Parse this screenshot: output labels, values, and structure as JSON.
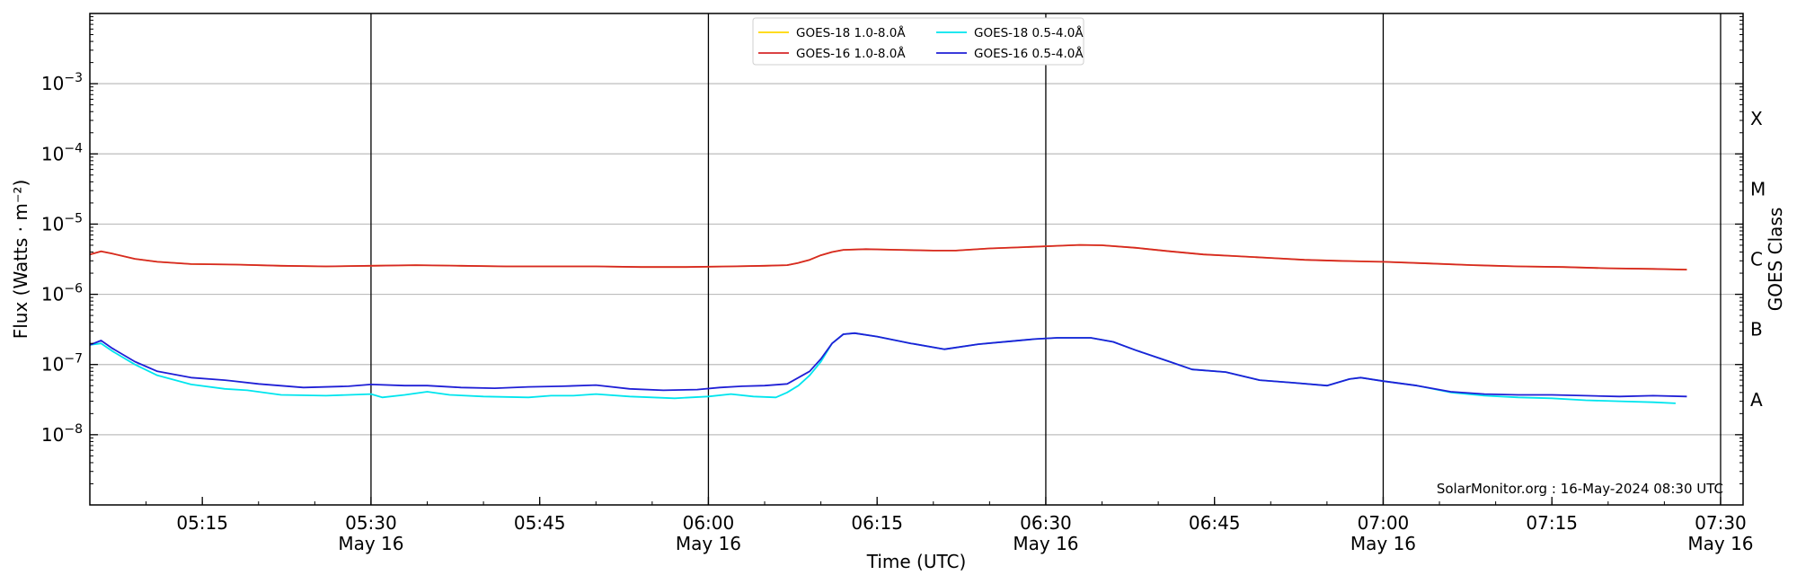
{
  "chart_data": {
    "type": "line",
    "title": "",
    "xlabel": "Time (UTC)",
    "ylabel": "Flux (Watts · m⁻²)",
    "y2label": "GOES Class",
    "yscale": "log",
    "ylim": [
      1e-09,
      0.01
    ],
    "xlim": [
      "05:05",
      "07:32"
    ],
    "xticks": [
      {
        "time": "05:15",
        "label": "05:15",
        "date": ""
      },
      {
        "time": "05:30",
        "label": "05:30",
        "date": "May 16"
      },
      {
        "time": "05:45",
        "label": "05:45",
        "date": ""
      },
      {
        "time": "06:00",
        "label": "06:00",
        "date": "May 16"
      },
      {
        "time": "06:15",
        "label": "06:15",
        "date": ""
      },
      {
        "time": "06:30",
        "label": "06:30",
        "date": "May 16"
      },
      {
        "time": "06:45",
        "label": "06:45",
        "date": ""
      },
      {
        "time": "07:00",
        "label": "07:00",
        "date": "May 16"
      },
      {
        "time": "07:15",
        "label": "07:15",
        "date": ""
      },
      {
        "time": "07:30",
        "label": "07:30",
        "date": "May 16"
      }
    ],
    "day_markers": [
      "05:30",
      "06:00",
      "06:30",
      "07:00",
      "07:30"
    ],
    "yticks": [
      {
        "value": 1e-08,
        "base": "10",
        "exp": "−8"
      },
      {
        "value": 1e-07,
        "base": "10",
        "exp": "−7"
      },
      {
        "value": 1e-06,
        "base": "10",
        "exp": "−6"
      },
      {
        "value": 1e-05,
        "base": "10",
        "exp": "−5"
      },
      {
        "value": 0.0001,
        "base": "10",
        "exp": "−4"
      },
      {
        "value": 0.001,
        "base": "10",
        "exp": "−3"
      }
    ],
    "goes_classes": [
      {
        "label": "A",
        "value": 3.16e-08
      },
      {
        "label": "B",
        "value": 3.16e-07
      },
      {
        "label": "C",
        "value": 3.16e-06
      },
      {
        "label": "M",
        "value": 3.16e-05
      },
      {
        "label": "X",
        "value": 0.000316
      }
    ],
    "grid": true,
    "legend": {
      "position": "top-center",
      "columns": 2
    },
    "series": [
      {
        "name": "GOES-18 1.0-8.0Å",
        "color": "#ffd700",
        "points": [
          [
            "05:05",
            3.7e-06
          ],
          [
            "05:06",
            4.1e-06
          ],
          [
            "05:07",
            3.8e-06
          ],
          [
            "05:09",
            3.2e-06
          ],
          [
            "05:11",
            2.9e-06
          ],
          [
            "05:14",
            2.7e-06
          ],
          [
            "05:18",
            2.65e-06
          ],
          [
            "05:22",
            2.55e-06
          ],
          [
            "05:26",
            2.5e-06
          ],
          [
            "05:30",
            2.55e-06
          ],
          [
            "05:34",
            2.6e-06
          ],
          [
            "05:38",
            2.55e-06
          ],
          [
            "05:42",
            2.5e-06
          ],
          [
            "05:46",
            2.5e-06
          ],
          [
            "05:50",
            2.5e-06
          ],
          [
            "05:54",
            2.45e-06
          ],
          [
            "05:58",
            2.45e-06
          ],
          [
            "06:02",
            2.5e-06
          ],
          [
            "06:05",
            2.55e-06
          ],
          [
            "06:07",
            2.6e-06
          ],
          [
            "06:08",
            2.8e-06
          ],
          [
            "06:09",
            3.1e-06
          ],
          [
            "06:10",
            3.6e-06
          ],
          [
            "06:11",
            4e-06
          ],
          [
            "06:12",
            4.3e-06
          ],
          [
            "06:14",
            4.4e-06
          ],
          [
            "06:17",
            4.3e-06
          ],
          [
            "06:20",
            4.2e-06
          ],
          [
            "06:22",
            4.2e-06
          ],
          [
            "06:25",
            4.5e-06
          ],
          [
            "06:28",
            4.7e-06
          ],
          [
            "06:31",
            4.9e-06
          ],
          [
            "06:33",
            5.05e-06
          ],
          [
            "06:35",
            5e-06
          ],
          [
            "06:38",
            4.6e-06
          ],
          [
            "06:41",
            4.1e-06
          ],
          [
            "06:44",
            3.7e-06
          ],
          [
            "06:47",
            3.5e-06
          ],
          [
            "06:50",
            3.3e-06
          ],
          [
            "06:53",
            3.1e-06
          ],
          [
            "06:56",
            3e-06
          ],
          [
            "06:58",
            2.95e-06
          ],
          [
            "07:00",
            2.9e-06
          ],
          [
            "07:04",
            2.75e-06
          ],
          [
            "07:08",
            2.6e-06
          ],
          [
            "07:12",
            2.5e-06
          ],
          [
            "07:16",
            2.45e-06
          ],
          [
            "07:20",
            2.35e-06
          ],
          [
            "07:24",
            2.3e-06
          ],
          [
            "07:27",
            2.25e-06
          ]
        ]
      },
      {
        "name": "GOES-16 1.0-8.0Å",
        "color": "#d62728",
        "points": [
          [
            "05:05",
            3.7e-06
          ],
          [
            "05:06",
            4.1e-06
          ],
          [
            "05:07",
            3.8e-06
          ],
          [
            "05:09",
            3.2e-06
          ],
          [
            "05:11",
            2.9e-06
          ],
          [
            "05:14",
            2.7e-06
          ],
          [
            "05:18",
            2.65e-06
          ],
          [
            "05:22",
            2.55e-06
          ],
          [
            "05:26",
            2.5e-06
          ],
          [
            "05:30",
            2.55e-06
          ],
          [
            "05:34",
            2.6e-06
          ],
          [
            "05:38",
            2.55e-06
          ],
          [
            "05:42",
            2.5e-06
          ],
          [
            "05:46",
            2.5e-06
          ],
          [
            "05:50",
            2.5e-06
          ],
          [
            "05:54",
            2.45e-06
          ],
          [
            "05:58",
            2.45e-06
          ],
          [
            "06:02",
            2.5e-06
          ],
          [
            "06:05",
            2.55e-06
          ],
          [
            "06:07",
            2.6e-06
          ],
          [
            "06:08",
            2.8e-06
          ],
          [
            "06:09",
            3.1e-06
          ],
          [
            "06:10",
            3.6e-06
          ],
          [
            "06:11",
            4e-06
          ],
          [
            "06:12",
            4.3e-06
          ],
          [
            "06:14",
            4.4e-06
          ],
          [
            "06:17",
            4.3e-06
          ],
          [
            "06:20",
            4.2e-06
          ],
          [
            "06:22",
            4.2e-06
          ],
          [
            "06:25",
            4.5e-06
          ],
          [
            "06:28",
            4.7e-06
          ],
          [
            "06:31",
            4.9e-06
          ],
          [
            "06:33",
            5.05e-06
          ],
          [
            "06:35",
            5e-06
          ],
          [
            "06:38",
            4.6e-06
          ],
          [
            "06:41",
            4.1e-06
          ],
          [
            "06:44",
            3.7e-06
          ],
          [
            "06:47",
            3.5e-06
          ],
          [
            "06:50",
            3.3e-06
          ],
          [
            "06:53",
            3.1e-06
          ],
          [
            "06:56",
            3e-06
          ],
          [
            "06:58",
            2.95e-06
          ],
          [
            "07:00",
            2.9e-06
          ],
          [
            "07:04",
            2.75e-06
          ],
          [
            "07:08",
            2.6e-06
          ],
          [
            "07:12",
            2.5e-06
          ],
          [
            "07:16",
            2.45e-06
          ],
          [
            "07:20",
            2.35e-06
          ],
          [
            "07:24",
            2.3e-06
          ],
          [
            "07:27",
            2.25e-06
          ]
        ]
      },
      {
        "name": "GOES-18 0.5-4.0Å",
        "color": "#00e5ee",
        "points": [
          [
            "05:05",
            1.9e-07
          ],
          [
            "05:06",
            2e-07
          ],
          [
            "05:07",
            1.55e-07
          ],
          [
            "05:09",
            1e-07
          ],
          [
            "05:11",
            7e-08
          ],
          [
            "05:14",
            5.2e-08
          ],
          [
            "05:17",
            4.5e-08
          ],
          [
            "05:19",
            4.3e-08
          ],
          [
            "05:22",
            3.7e-08
          ],
          [
            "05:26",
            3.6e-08
          ],
          [
            "05:30",
            3.8e-08
          ],
          [
            "05:31",
            3.4e-08
          ],
          [
            "05:33",
            3.7e-08
          ],
          [
            "05:35",
            4.1e-08
          ],
          [
            "05:37",
            3.7e-08
          ],
          [
            "05:40",
            3.5e-08
          ],
          [
            "05:44",
            3.4e-08
          ],
          [
            "05:46",
            3.6e-08
          ],
          [
            "05:48",
            3.6e-08
          ],
          [
            "05:50",
            3.8e-08
          ],
          [
            "05:53",
            3.5e-08
          ],
          [
            "05:55",
            3.4e-08
          ],
          [
            "05:57",
            3.3e-08
          ],
          [
            "06:00",
            3.5e-08
          ],
          [
            "06:02",
            3.8e-08
          ],
          [
            "06:04",
            3.5e-08
          ],
          [
            "06:06",
            3.4e-08
          ],
          [
            "06:07",
            4e-08
          ],
          [
            "06:08",
            5e-08
          ],
          [
            "06:09",
            7e-08
          ],
          [
            "06:10",
            1.1e-07
          ],
          [
            "06:11",
            2e-07
          ],
          [
            "06:12",
            2.7e-07
          ],
          [
            "06:13",
            2.8e-07
          ],
          [
            "06:15",
            2.5e-07
          ],
          [
            "06:18",
            2e-07
          ],
          [
            "06:21",
            1.65e-07
          ],
          [
            "06:24",
            1.95e-07
          ],
          [
            "06:27",
            2.15e-07
          ],
          [
            "06:29",
            2.3e-07
          ],
          [
            "06:31",
            2.4e-07
          ],
          [
            "06:34",
            2.4e-07
          ],
          [
            "06:36",
            2.1e-07
          ],
          [
            "06:38",
            1.6e-07
          ],
          [
            "06:41",
            1.1e-07
          ],
          [
            "06:43",
            8.5e-08
          ],
          [
            "06:46",
            7.8e-08
          ],
          [
            "06:49",
            6e-08
          ],
          [
            "06:52",
            5.5e-08
          ],
          [
            "06:55",
            5e-08
          ],
          [
            "06:57",
            6.2e-08
          ],
          [
            "06:58",
            6.5e-08
          ],
          [
            "07:00",
            5.8e-08
          ],
          [
            "07:03",
            5e-08
          ],
          [
            "07:06",
            4e-08
          ],
          [
            "07:09",
            3.6e-08
          ],
          [
            "07:12",
            3.4e-08
          ],
          [
            "07:15",
            3.3e-08
          ],
          [
            "07:18",
            3.1e-08
          ],
          [
            "07:21",
            3e-08
          ],
          [
            "07:24",
            2.9e-08
          ],
          [
            "07:26",
            2.8e-08
          ]
        ]
      },
      {
        "name": "GOES-16 0.5-4.0Å",
        "color": "#1f1fd6",
        "points": [
          [
            "05:05",
            1.9e-07
          ],
          [
            "05:06",
            2.2e-07
          ],
          [
            "05:07",
            1.7e-07
          ],
          [
            "05:09",
            1.1e-07
          ],
          [
            "05:11",
            8e-08
          ],
          [
            "05:14",
            6.5e-08
          ],
          [
            "05:17",
            6e-08
          ],
          [
            "05:20",
            5.3e-08
          ],
          [
            "05:24",
            4.7e-08
          ],
          [
            "05:28",
            4.9e-08
          ],
          [
            "05:30",
            5.2e-08
          ],
          [
            "05:33",
            5e-08
          ],
          [
            "05:35",
            5e-08
          ],
          [
            "05:38",
            4.7e-08
          ],
          [
            "05:41",
            4.6e-08
          ],
          [
            "05:44",
            4.8e-08
          ],
          [
            "05:47",
            4.9e-08
          ],
          [
            "05:50",
            5.1e-08
          ],
          [
            "05:53",
            4.5e-08
          ],
          [
            "05:56",
            4.3e-08
          ],
          [
            "05:59",
            4.4e-08
          ],
          [
            "06:01",
            4.7e-08
          ],
          [
            "06:03",
            4.9e-08
          ],
          [
            "06:05",
            5e-08
          ],
          [
            "06:07",
            5.3e-08
          ],
          [
            "06:08",
            6.5e-08
          ],
          [
            "06:09",
            8e-08
          ],
          [
            "06:10",
            1.2e-07
          ],
          [
            "06:11",
            2e-07
          ],
          [
            "06:12",
            2.7e-07
          ],
          [
            "06:13",
            2.8e-07
          ],
          [
            "06:15",
            2.5e-07
          ],
          [
            "06:18",
            2e-07
          ],
          [
            "06:21",
            1.65e-07
          ],
          [
            "06:24",
            1.95e-07
          ],
          [
            "06:27",
            2.15e-07
          ],
          [
            "06:29",
            2.3e-07
          ],
          [
            "06:31",
            2.4e-07
          ],
          [
            "06:34",
            2.4e-07
          ],
          [
            "06:36",
            2.1e-07
          ],
          [
            "06:38",
            1.6e-07
          ],
          [
            "06:41",
            1.1e-07
          ],
          [
            "06:43",
            8.5e-08
          ],
          [
            "06:46",
            7.8e-08
          ],
          [
            "06:49",
            6e-08
          ],
          [
            "06:52",
            5.5e-08
          ],
          [
            "06:55",
            5e-08
          ],
          [
            "06:57",
            6.2e-08
          ],
          [
            "06:58",
            6.5e-08
          ],
          [
            "07:00",
            5.8e-08
          ],
          [
            "07:03",
            5e-08
          ],
          [
            "07:06",
            4.1e-08
          ],
          [
            "07:09",
            3.8e-08
          ],
          [
            "07:12",
            3.7e-08
          ],
          [
            "07:15",
            3.7e-08
          ],
          [
            "07:18",
            3.6e-08
          ],
          [
            "07:21",
            3.5e-08
          ],
          [
            "07:24",
            3.6e-08
          ],
          [
            "07:27",
            3.5e-08
          ]
        ]
      }
    ],
    "annotation": "SolarMonitor.org : 16-May-2024 08:30 UTC"
  }
}
